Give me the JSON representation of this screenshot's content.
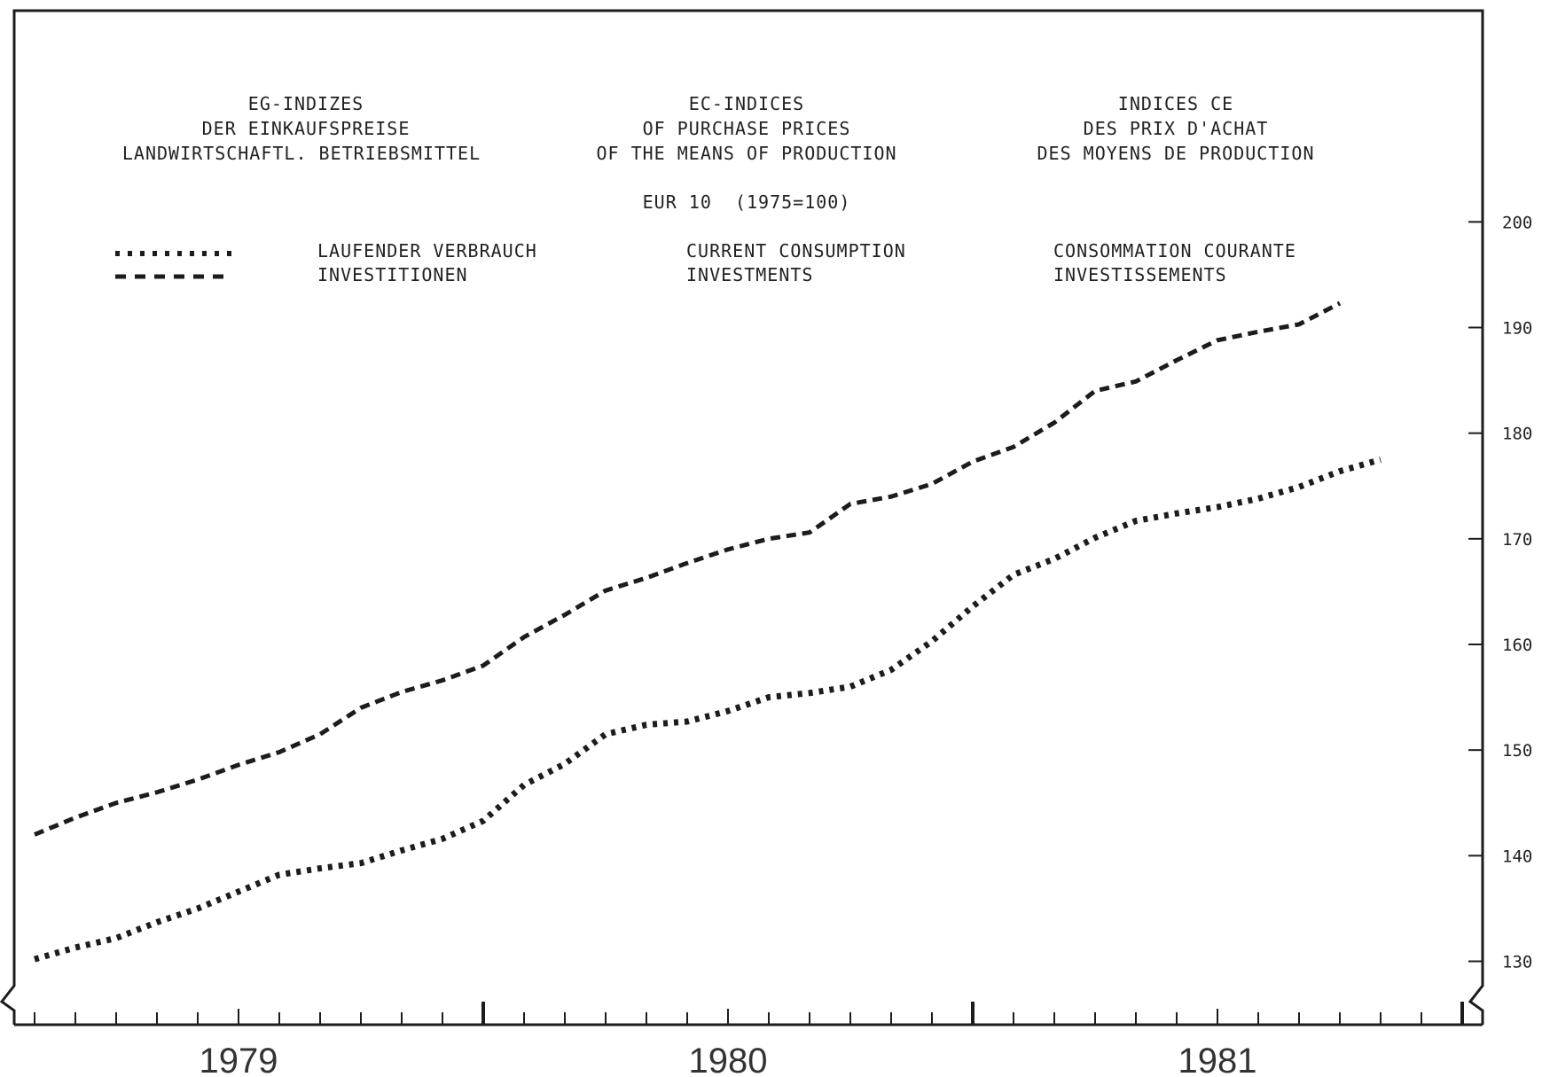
{
  "header": {
    "de": [
      "EG-INDIZES",
      "DER EINKAUFSPREISE",
      "LANDWIRTSCHAFTL. BETRIEBSMITTEL"
    ],
    "en": [
      "EC-INDICES",
      "OF PURCHASE PRICES",
      "OF THE MEANS OF PRODUCTION"
    ],
    "fr": [
      "INDICES CE",
      "DES PRIX D'ACHAT",
      "DES MOYENS DE PRODUCTION"
    ],
    "subtitle": "EUR 10  (1975=100)"
  },
  "legend": {
    "de": [
      "LAUFENDER VERBRAUCH",
      "INVESTITIONEN"
    ],
    "en": [
      "CURRENT CONSUMPTION",
      "INVESTMENTS"
    ],
    "fr": [
      "CONSOMMATION COURANTE",
      "INVESTISSEMENTS"
    ]
  },
  "chart_data": {
    "type": "line",
    "title": "EC-INDICES OF PURCHASE PRICES OF THE MEANS OF PRODUCTION",
    "subtitle": "EUR 10 (1975=100)",
    "xlabel": "",
    "ylabel": "",
    "x_tick_labels": [
      "1979",
      "1980",
      "1981"
    ],
    "y_ticks": [
      130,
      140,
      150,
      160,
      170,
      180,
      190,
      200
    ],
    "ylim": [
      124,
      220
    ],
    "x_months_from_jan1979": [
      -5,
      -4,
      -3,
      -2,
      -1,
      0,
      1,
      2,
      3,
      4,
      5,
      6,
      7,
      8,
      9,
      10,
      11,
      12,
      13,
      14,
      15,
      16,
      17,
      18,
      19,
      20,
      21,
      22,
      23,
      24,
      25,
      26,
      27,
      28,
      29,
      30
    ],
    "x_axis_range_months": [
      -5.5,
      30.5
    ],
    "grid": false,
    "legend_position": "top-left",
    "series": [
      {
        "name": "LAUFENDER VERBRAUCH / CURRENT CONSUMPTION / CONSOMMATION COURANTE",
        "style": "dotted",
        "values": [
          130.2,
          131.3,
          132.2,
          133.7,
          135.0,
          136.6,
          138.2,
          138.8,
          139.3,
          140.5,
          141.6,
          143.3,
          146.7,
          148.7,
          151.5,
          152.4,
          152.7,
          153.7,
          155.0,
          155.4,
          156.0,
          157.6,
          160.3,
          163.6,
          166.6,
          168.1,
          170.1,
          171.7,
          172.4,
          173.0,
          173.8,
          174.9,
          176.4,
          177.5,
          null,
          null
        ]
      },
      {
        "name": "INVESTITIONEN / INVESTMENTS / INVESTISSEMENTS",
        "style": "dashed",
        "values": [
          142.0,
          143.6,
          145.0,
          146.0,
          147.2,
          148.6,
          149.8,
          151.5,
          154.0,
          155.5,
          156.6,
          158.0,
          160.7,
          162.8,
          165.1,
          166.3,
          167.7,
          169.0,
          170.0,
          170.6,
          173.3,
          174.0,
          175.2,
          177.3,
          178.7,
          181.0,
          184.0,
          184.9,
          186.9,
          188.8,
          189.6,
          190.3,
          192.3,
          null,
          null,
          null
        ]
      }
    ]
  }
}
